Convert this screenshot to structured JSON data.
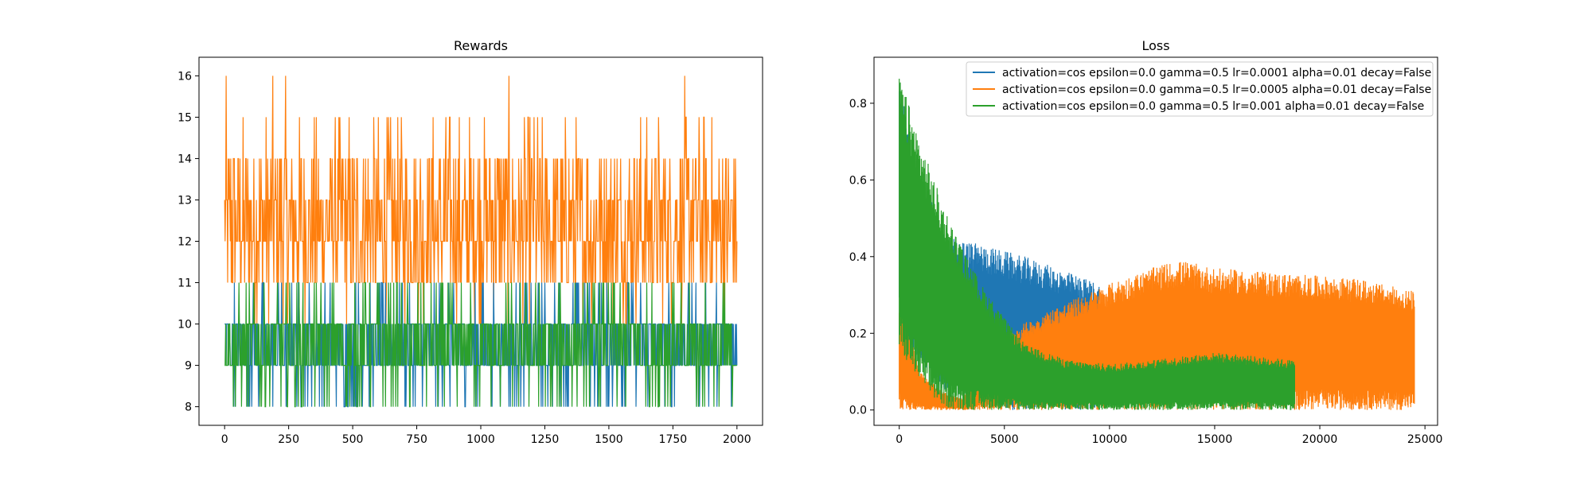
{
  "chart_data": [
    {
      "type": "line",
      "title": "Rewards",
      "xlabel": "",
      "ylabel": "",
      "xlim": [
        -100,
        2100
      ],
      "ylim": [
        7.55,
        16.45
      ],
      "xticks": [
        0,
        250,
        500,
        750,
        1000,
        1250,
        1500,
        1750,
        2000
      ],
      "yticks": [
        8,
        9,
        10,
        11,
        12,
        13,
        14,
        15,
        16
      ],
      "grid": false,
      "legend": "none",
      "series": [
        {
          "color": "#1f77b4",
          "x_range": [
            0,
            2000
          ],
          "values_min": 8,
          "values_max": 11,
          "typical_range": [
            9,
            10
          ]
        },
        {
          "color": "#ff7f0e",
          "x_range": [
            0,
            2000
          ],
          "values_min": 10,
          "values_max": 16,
          "typical_range": [
            11,
            14
          ]
        },
        {
          "color": "#2ca02c",
          "x_range": [
            0,
            2000
          ],
          "values_min": 8,
          "values_max": 11,
          "typical_range": [
            9,
            10
          ]
        }
      ]
    },
    {
      "type": "line",
      "title": "Loss",
      "xlabel": "",
      "ylabel": "",
      "xlim": [
        -1200,
        25600
      ],
      "ylim": [
        -0.04,
        0.92
      ],
      "xticks": [
        0,
        5000,
        10000,
        15000,
        20000,
        25000
      ],
      "yticks": [
        0.0,
        0.2,
        0.4,
        0.6,
        0.8
      ],
      "grid": false,
      "legend": "top-right",
      "series": [
        {
          "name": "activation=cos epsilon=0.0 gamma=0.5 lr=0.0001 alpha=0.01 decay=False",
          "color": "#1f77b4",
          "upper_envelope": {
            "x": [
              0,
              500,
              2000,
              2500,
              4000,
              6000,
              8000,
              9500
            ],
            "y": [
              0.87,
              0.7,
              0.48,
              0.45,
              0.43,
              0.4,
              0.36,
              0.33
            ]
          },
          "lower_envelope": {
            "x": [
              0,
              2000,
              5000,
              9500
            ],
            "y": [
              0.2,
              0.05,
              0.0,
              0.0
            ]
          }
        },
        {
          "name": "activation=cos epsilon=0.0 gamma=0.5 lr=0.0005 alpha=0.01 decay=False",
          "color": "#ff7f0e",
          "upper_envelope": {
            "x": [
              0,
              1000,
              2000,
              3000,
              5000,
              7500,
              10000,
              12500,
              13500,
              15000,
              17500,
              20000,
              22000,
              24500
            ],
            "y": [
              0.3,
              0.1,
              0.05,
              0.03,
              0.2,
              0.27,
              0.33,
              0.38,
              0.39,
              0.37,
              0.36,
              0.35,
              0.34,
              0.31
            ]
          },
          "lower_envelope": {
            "x": [
              0,
              24500
            ],
            "y": [
              0.0,
              0.0
            ]
          }
        },
        {
          "name": "activation=cos epsilon=0.0 gamma=0.5 lr=0.001 alpha=0.01 decay=False",
          "color": "#2ca02c",
          "upper_envelope": {
            "x": [
              0,
              500,
              1000,
              2000,
              3000,
              4000,
              5000,
              6000,
              8000,
              10000,
              12000,
              15000,
              17000,
              18800
            ],
            "y": [
              0.87,
              0.79,
              0.7,
              0.55,
              0.42,
              0.32,
              0.24,
              0.17,
              0.13,
              0.12,
              0.13,
              0.15,
              0.14,
              0.13
            ]
          },
          "lower_envelope": {
            "x": [
              0,
              1500,
              2500,
              18800
            ],
            "y": [
              0.15,
              0.03,
              0.0,
              0.0
            ]
          }
        }
      ]
    }
  ]
}
